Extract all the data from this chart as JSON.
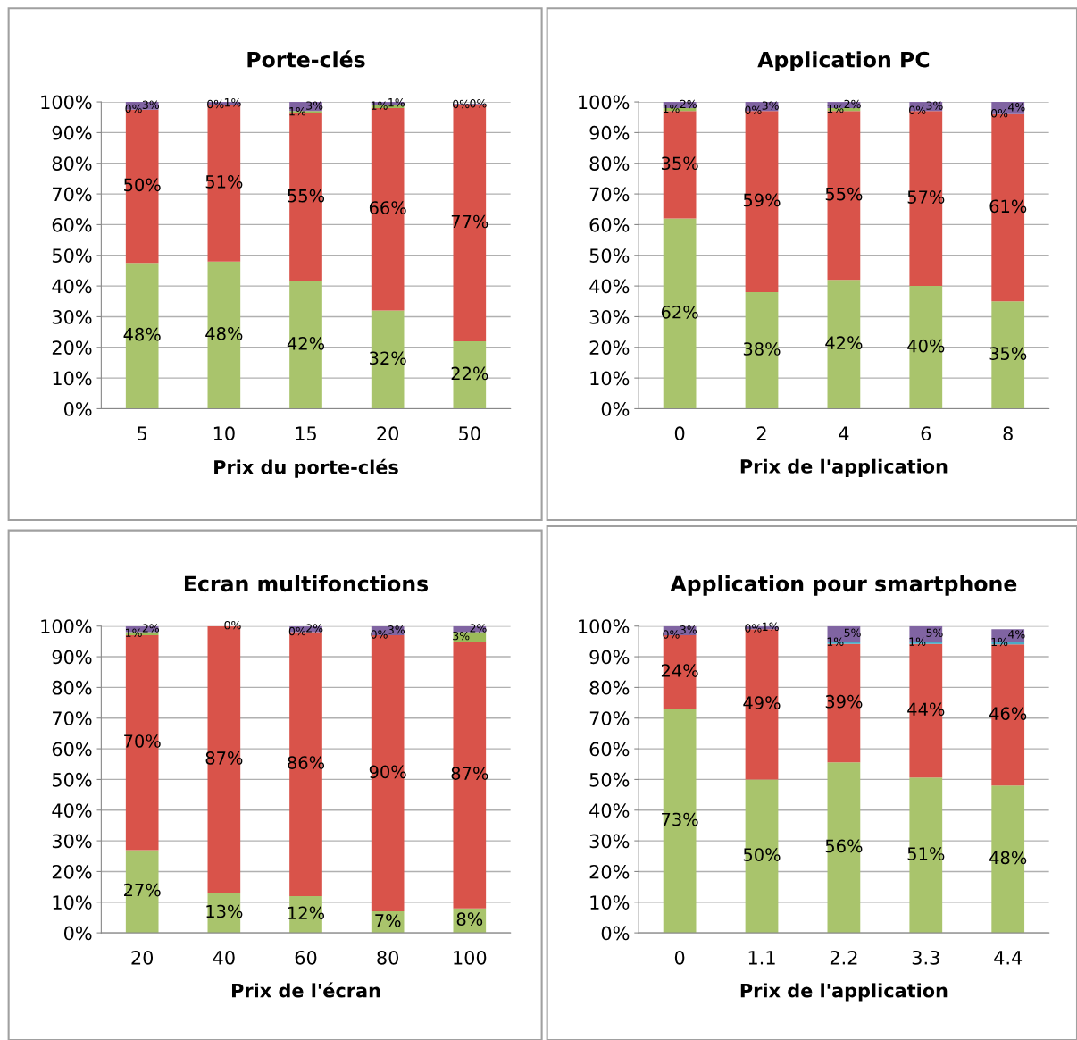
{
  "chart_data": [
    {
      "type": "bar",
      "stacked": true,
      "title": "Porte-clés",
      "xlabel": "Prix du porte-clés",
      "categories": [
        "5",
        "10",
        "15",
        "20",
        "50"
      ],
      "ylim": [
        0,
        100
      ],
      "yticks": [
        {
          "value": 0,
          "label": "0%"
        },
        {
          "value": 10,
          "label": "10%"
        },
        {
          "value": 20,
          "label": "20%"
        },
        {
          "value": 30,
          "label": "30%"
        },
        {
          "value": 40,
          "label": "40%"
        },
        {
          "value": 50,
          "label": "50%"
        },
        {
          "value": 60,
          "label": "60%"
        },
        {
          "value": 70,
          "label": "70%"
        },
        {
          "value": 80,
          "label": "80%"
        },
        {
          "value": 90,
          "label": "90%"
        },
        {
          "value": 100,
          "label": "100%"
        }
      ],
      "grid": "y",
      "legend": false,
      "series": [
        {
          "color": "#a9c46c",
          "values": [
            47.5,
            48,
            41.6,
            32,
            22
          ],
          "value_labels": [
            "48%",
            "48%",
            "42%",
            "32%",
            "22%"
          ]
        },
        {
          "color": "#d9534a",
          "values": [
            50,
            51,
            54.6,
            66,
            77
          ],
          "value_labels": [
            "50%",
            "51%",
            "55%",
            "66%",
            "77%"
          ]
        },
        {
          "color": "#9bbb59",
          "values": [
            0,
            0,
            0.8,
            1,
            0
          ],
          "value_labels": [
            "0%",
            "0%",
            "1%",
            "1%",
            "0%"
          ]
        },
        {
          "color": "#8064a2",
          "values": [
            2.5,
            1,
            3,
            1,
            0.4
          ],
          "value_labels": [
            "3%",
            "1%",
            "3%",
            "1%",
            "0%"
          ]
        }
      ]
    },
    {
      "type": "bar",
      "stacked": true,
      "title": "Application PC",
      "xlabel": "Prix de l'application",
      "categories": [
        "0",
        "2",
        "4",
        "6",
        "8"
      ],
      "ylim": [
        0,
        100
      ],
      "yticks": [
        {
          "value": 0,
          "label": "0%"
        },
        {
          "value": 10,
          "label": "10%"
        },
        {
          "value": 20,
          "label": "20%"
        },
        {
          "value": 30,
          "label": "30%"
        },
        {
          "value": 40,
          "label": "40%"
        },
        {
          "value": 50,
          "label": "50%"
        },
        {
          "value": 60,
          "label": "60%"
        },
        {
          "value": 70,
          "label": "70%"
        },
        {
          "value": 80,
          "label": "80%"
        },
        {
          "value": 90,
          "label": "90%"
        },
        {
          "value": 100,
          "label": "100%"
        }
      ],
      "grid": "y",
      "legend": false,
      "series": [
        {
          "color": "#a9c46c",
          "values": [
            62,
            38,
            42,
            40,
            35
          ],
          "value_labels": [
            "62%",
            "38%",
            "42%",
            "40%",
            "35%"
          ]
        },
        {
          "color": "#d9534a",
          "values": [
            35,
            59,
            55,
            57,
            61
          ],
          "value_labels": [
            "35%",
            "59%",
            "55%",
            "57%",
            "61%"
          ]
        },
        {
          "color": "#9bbb59",
          "values": [
            1,
            0,
            1,
            0,
            0
          ],
          "value_labels": [
            "1%",
            "0%",
            "1%",
            "0%",
            "0%"
          ]
        },
        {
          "color": "#8064a2",
          "values": [
            2,
            3,
            2,
            3,
            4
          ],
          "value_labels": [
            "2%",
            "3%",
            "2%",
            "3%",
            "4%"
          ]
        }
      ]
    },
    {
      "type": "bar",
      "stacked": true,
      "title": "Ecran multifonctions",
      "xlabel": "Prix de l'écran",
      "categories": [
        "20",
        "40",
        "60",
        "80",
        "100"
      ],
      "ylim": [
        0,
        100
      ],
      "yticks": [
        {
          "value": 0,
          "label": "0%"
        },
        {
          "value": 10,
          "label": "10%"
        },
        {
          "value": 20,
          "label": "20%"
        },
        {
          "value": 30,
          "label": "30%"
        },
        {
          "value": 40,
          "label": "40%"
        },
        {
          "value": 50,
          "label": "50%"
        },
        {
          "value": 60,
          "label": "60%"
        },
        {
          "value": 70,
          "label": "70%"
        },
        {
          "value": 80,
          "label": "80%"
        },
        {
          "value": 90,
          "label": "90%"
        },
        {
          "value": 100,
          "label": "100%"
        }
      ],
      "grid": "y",
      "legend": false,
      "series": [
        {
          "color": "#a9c46c",
          "values": [
            27,
            13,
            12,
            7,
            8
          ],
          "value_labels": [
            "27%",
            "13%",
            "12%",
            "7%",
            "8%"
          ]
        },
        {
          "color": "#d9534a",
          "values": [
            70,
            87,
            86,
            90,
            87
          ],
          "value_labels": [
            "70%",
            "87%",
            "86%",
            "90%",
            "87%"
          ]
        },
        {
          "color": "#9bbb59",
          "values": [
            1,
            0,
            0,
            0,
            3
          ],
          "value_labels": [
            "1%",
            null,
            "0%",
            "0%",
            "3%"
          ]
        },
        {
          "color": "#8064a2",
          "values": [
            2,
            0,
            2,
            3,
            2
          ],
          "value_labels": [
            "2%",
            "0%",
            "2%",
            "3%",
            "2%"
          ]
        }
      ]
    },
    {
      "type": "bar",
      "stacked": true,
      "title": "Application pour smartphone",
      "xlabel": "Prix de l'application",
      "categories": [
        "0",
        "1.1",
        "2.2",
        "3.3",
        "4.4"
      ],
      "ylim": [
        0,
        100
      ],
      "yticks": [
        {
          "value": 0,
          "label": "0%"
        },
        {
          "value": 10,
          "label": "10%"
        },
        {
          "value": 20,
          "label": "20%"
        },
        {
          "value": 30,
          "label": "30%"
        },
        {
          "value": 40,
          "label": "40%"
        },
        {
          "value": 50,
          "label": "50%"
        },
        {
          "value": 60,
          "label": "60%"
        },
        {
          "value": 70,
          "label": "70%"
        },
        {
          "value": 80,
          "label": "80%"
        },
        {
          "value": 90,
          "label": "90%"
        },
        {
          "value": 100,
          "label": "100%"
        }
      ],
      "grid": "y",
      "legend": false,
      "series": [
        {
          "color": "#a9c46c",
          "values": [
            73,
            50,
            55.6,
            50.6,
            48
          ],
          "value_labels": [
            "73%",
            "50%",
            "56%",
            "51%",
            "48%"
          ]
        },
        {
          "color": "#d9534a",
          "values": [
            24,
            49,
            38.6,
            43.6,
            46
          ],
          "value_labels": [
            "24%",
            "49%",
            "39%",
            "44%",
            "46%"
          ]
        },
        {
          "color": "#4bacc6",
          "values": [
            0,
            0,
            0.8,
            0.8,
            1
          ],
          "value_labels": [
            "0%",
            "0%",
            "1%",
            "1%",
            "1%"
          ]
        },
        {
          "color": "#8064a2",
          "values": [
            3,
            1,
            5,
            5,
            4
          ],
          "value_labels": [
            "3%",
            "1%",
            "5%",
            "5%",
            "4%"
          ]
        }
      ]
    }
  ]
}
